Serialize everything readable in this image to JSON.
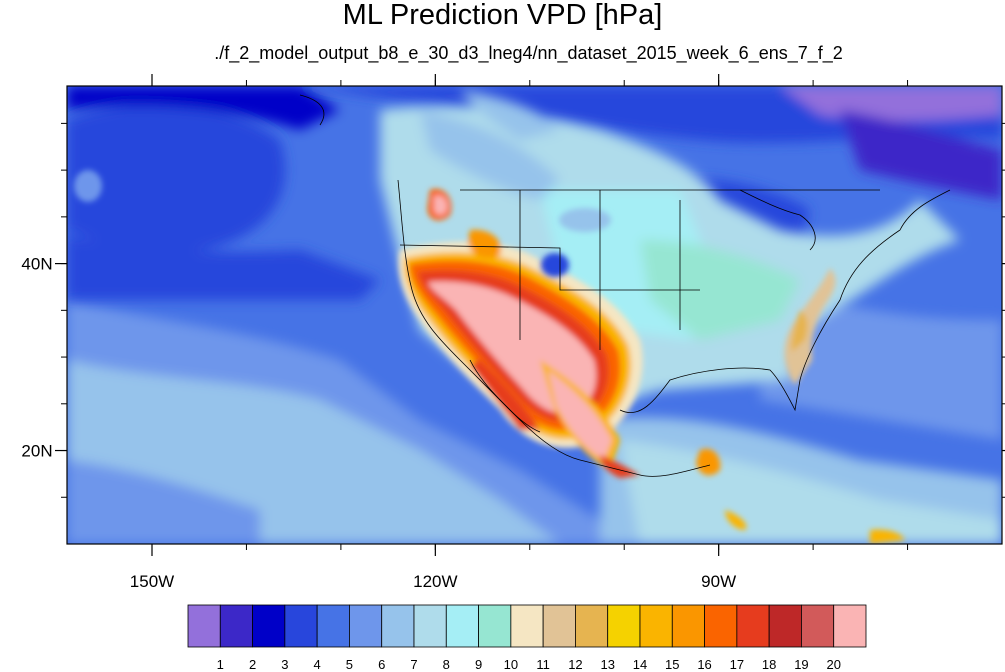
{
  "title": "ML Prediction VPD [hPa]",
  "subtitle": "./f_2_model_output_b8_e_30_d3_lneg4/nn_dataset_2015_week_6_ens_7_f_2",
  "map": {
    "lon_range": [
      -159,
      -60
    ],
    "lat_range": [
      10,
      59
    ],
    "x_ticks": [
      {
        "lon": -150,
        "label": "150W"
      },
      {
        "lon": -120,
        "label": "120W"
      },
      {
        "lon": -90,
        "label": "90W"
      }
    ],
    "y_ticks": [
      {
        "lat": 40,
        "label": "40N"
      },
      {
        "lat": 20,
        "label": "20N"
      }
    ],
    "minor_x": [
      -150,
      -140,
      -130,
      -120,
      -110,
      -100,
      -90,
      -80,
      -70
    ],
    "minor_y": [
      15,
      20,
      25,
      30,
      35,
      40,
      45,
      50,
      55
    ]
  },
  "colorbar": {
    "colors": [
      "#9370db",
      "#3c28c8",
      "#0000c8",
      "#2846dc",
      "#4673e6",
      "#6e96eb",
      "#96c3eb",
      "#afdceb",
      "#a5eef5",
      "#96e6d2",
      "#f5e6c3",
      "#e1c396",
      "#e6b450",
      "#f5d200",
      "#fab400",
      "#fa9600",
      "#fa6400",
      "#e63c1e",
      "#be2828",
      "#d25a5a",
      "#fab4b4"
    ],
    "labels": [
      "1",
      "2",
      "3",
      "4",
      "5",
      "6",
      "7",
      "8",
      "9",
      "10",
      "11",
      "12",
      "13",
      "14",
      "15",
      "16",
      "17",
      "18",
      "19",
      "20"
    ]
  }
}
